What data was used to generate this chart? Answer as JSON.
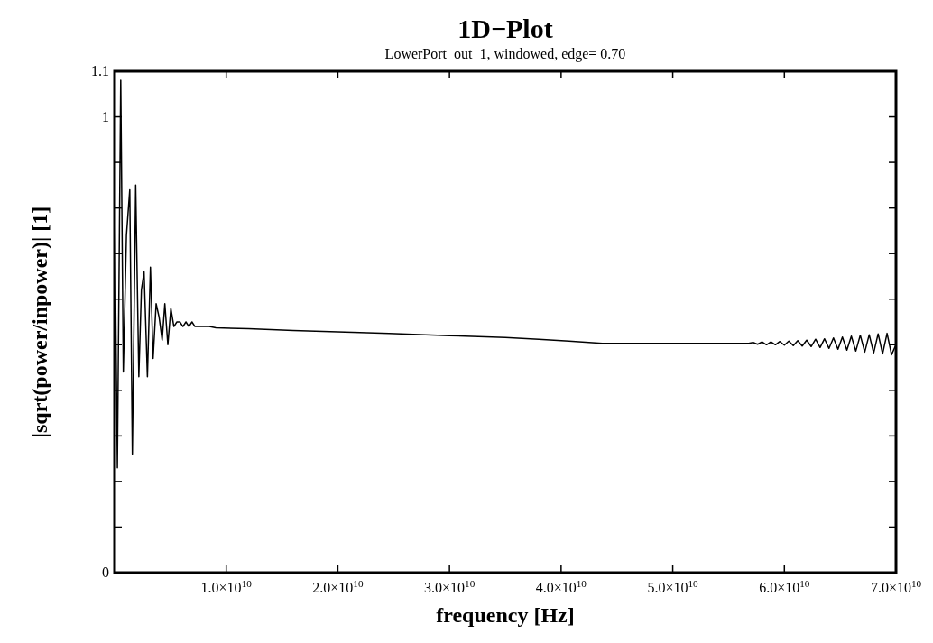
{
  "chart_data": {
    "type": "line",
    "title": "1D−Plot",
    "subtitle": "LowerPort_out_1, windowed, edge= 0.70",
    "xlabel": "frequency [Hz]",
    "ylabel": "|sqrt(power/inpower)| [1]",
    "xlim": [
      0,
      70000000000
    ],
    "ylim": [
      0,
      1.1
    ],
    "xticks": [
      {
        "value": 10000000000,
        "label": "1.0×10$^{10}$"
      },
      {
        "value": 20000000000,
        "label": "2.0×10$^{10}$"
      },
      {
        "value": 30000000000,
        "label": "3.0×10$^{10}$"
      },
      {
        "value": 40000000000,
        "label": "4.0×10$^{10}$"
      },
      {
        "value": 50000000000,
        "label": "5.0×10$^{10}$"
      },
      {
        "value": 60000000000,
        "label": "6.0×10$^{10}$"
      },
      {
        "value": 70000000000,
        "label": "7.0×10$^{10}$"
      }
    ],
    "yticks": [
      0,
      {
        "value": 0.1,
        "label": null
      },
      {
        "value": 0.2,
        "label": null
      },
      {
        "value": 0.3,
        "label": null
      },
      {
        "value": 0.4,
        "label": null
      },
      {
        "value": 0.5,
        "label": null
      },
      {
        "value": 0.6,
        "label": null
      },
      {
        "value": 0.7,
        "label": null
      },
      {
        "value": 0.8,
        "label": null
      },
      {
        "value": 0.9,
        "label": null
      },
      1,
      1.1
    ],
    "marker": "none",
    "line_style": "solid",
    "series": [
      {
        "color": "#000000",
        "x": [
          0,
          250000000.0,
          550000000.0,
          780000000.0,
          1060000000.0,
          1360000000.0,
          1590000000.0,
          1890000000.0,
          2170000000.0,
          2400000000.0,
          2640000000.0,
          2940000000.0,
          3210000000.0,
          3450000000.0,
          3720000000.0,
          3990000000.0,
          4260000000.0,
          4500000000.0,
          4770000000.0,
          5040000000.0,
          5310000000.0,
          5580000000.0,
          5850000000.0,
          6120000000.0,
          6390000000.0,
          6660000000.0,
          6930000000.0,
          7200000000.0,
          7460000000.0,
          7880000000.0,
          8480000000.0,
          9080000000.0,
          12000000000.0,
          16000000000.0,
          20000000000.0,
          24600000000.0,
          30000000000.0,
          35000000000.0,
          38000000000.0,
          40700000000.0,
          43700000000.0,
          50000000000.0,
          56800000000.0,
          57200000000.0,
          57600000000.0,
          58000000000.0,
          58400000000.0,
          58800000000.0,
          59200000000.0,
          59600000000.0,
          60000000000.0,
          60400000000.0,
          60800000000.0,
          61200000000.0,
          61600000000.0,
          62000000000.0,
          62400000000.0,
          62800000000.0,
          63200000000.0,
          63600000000.0,
          64000000000.0,
          64400000000.0,
          64800000000.0,
          65200000000.0,
          65600000000.0,
          66000000000.0,
          66400000000.0,
          66800000000.0,
          67200000000.0,
          67600000000.0,
          68000000000.0,
          68400000000.0,
          68800000000.0,
          69200000000.0,
          69600000000.0,
          70000000000.0
        ],
        "values": [
          0.81,
          0.23,
          1.08,
          0.44,
          0.74,
          0.84,
          0.26,
          0.85,
          0.43,
          0.62,
          0.66,
          0.43,
          0.67,
          0.47,
          0.59,
          0.56,
          0.51,
          0.59,
          0.5,
          0.58,
          0.54,
          0.55,
          0.55,
          0.54,
          0.55,
          0.54,
          0.55,
          0.54,
          0.54,
          0.54,
          0.54,
          0.537,
          0.535,
          0.531,
          0.528,
          0.525,
          0.52,
          0.516,
          0.512,
          0.508,
          0.503,
          0.503,
          0.503,
          0.505,
          0.501,
          0.506,
          0.5,
          0.506,
          0.5,
          0.507,
          0.499,
          0.508,
          0.498,
          0.509,
          0.497,
          0.51,
          0.496,
          0.512,
          0.494,
          0.513,
          0.492,
          0.515,
          0.49,
          0.517,
          0.488,
          0.519,
          0.486,
          0.521,
          0.484,
          0.522,
          0.482,
          0.524,
          0.48,
          0.525,
          0.478,
          0.5
        ]
      }
    ]
  }
}
